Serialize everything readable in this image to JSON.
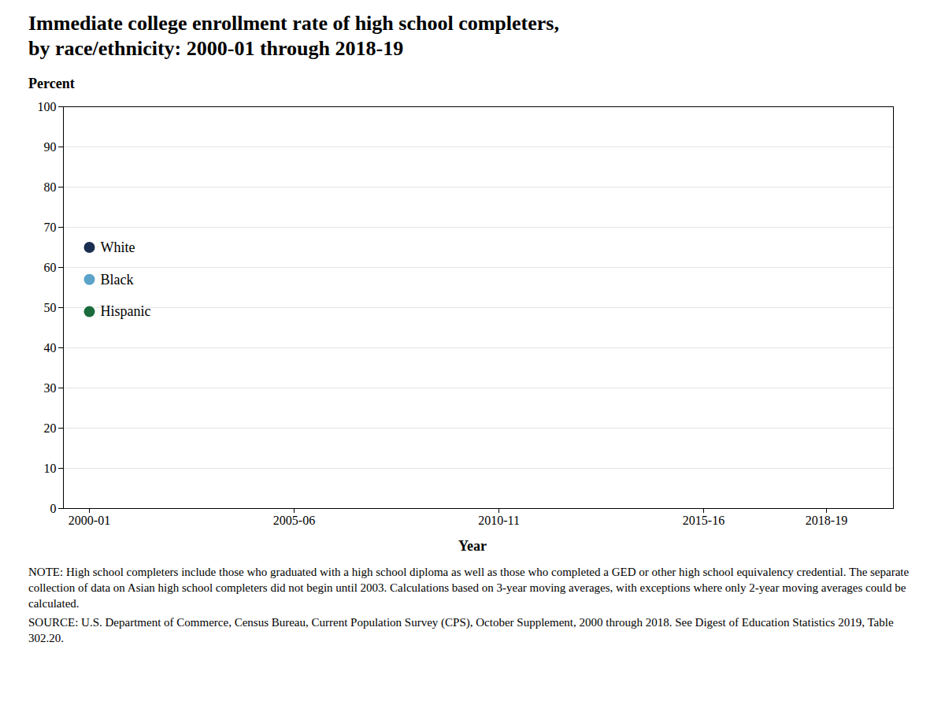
{
  "chart_data": {
    "type": "scatter",
    "title": "Immediate college enrollment rate of high school completers,",
    "subtitle": "by race/ethnicity: 2000-01 through 2018-19",
    "y_label": "Percent",
    "x_label": "Year",
    "categories": [
      "2000-01",
      null,
      null,
      null,
      null,
      "2005-06",
      null,
      null,
      null,
      null,
      "2010-11",
      null,
      null,
      null,
      null,
      "2015-16",
      null,
      null,
      "2018-19",
      null
    ],
    "series": [
      {
        "name": "White",
        "color": "#1a2e52",
        "values": [
          65,
          null,
          null,
          null,
          null,
          null,
          null,
          null,
          null,
          null,
          null,
          null,
          null,
          null,
          null,
          null,
          null,
          null,
          null,
          null
        ]
      },
      {
        "name": "Black",
        "color": "#5ba3c9",
        "values": [
          57,
          null,
          null,
          null,
          null,
          null,
          null,
          null,
          null,
          null,
          null,
          null,
          null,
          null,
          null,
          null,
          null,
          null,
          null,
          null
        ]
      },
      {
        "name": "Hispanic",
        "color": "#1a6b3c",
        "values": [
          49,
          null,
          null,
          null,
          null,
          null,
          null,
          null,
          null,
          null,
          null,
          null,
          null,
          null,
          null,
          null,
          null,
          null,
          null,
          null
        ]
      }
    ],
    "ylim": [
      0,
      100
    ],
    "yticks": [
      0,
      10,
      20,
      30,
      40,
      50,
      60,
      70,
      80,
      90,
      100
    ],
    "grid": true,
    "annotations": [
      "NOTE: High school completers include those who graduated with a high school diploma as well as those who completed a GED or other high school equivalency credential. The separate collection of data on Asian high school completers did not begin until 2003. Calculations based on 3-year moving averages, with exceptions where only 2-year moving averages could be calculated.",
      "SOURCE: U.S. Department of Commerce, Census Bureau, Current Population Survey (CPS), October Supplement, 2000 through 2018. See Digest of Education Statistics 2019, Table 302.20."
    ]
  }
}
